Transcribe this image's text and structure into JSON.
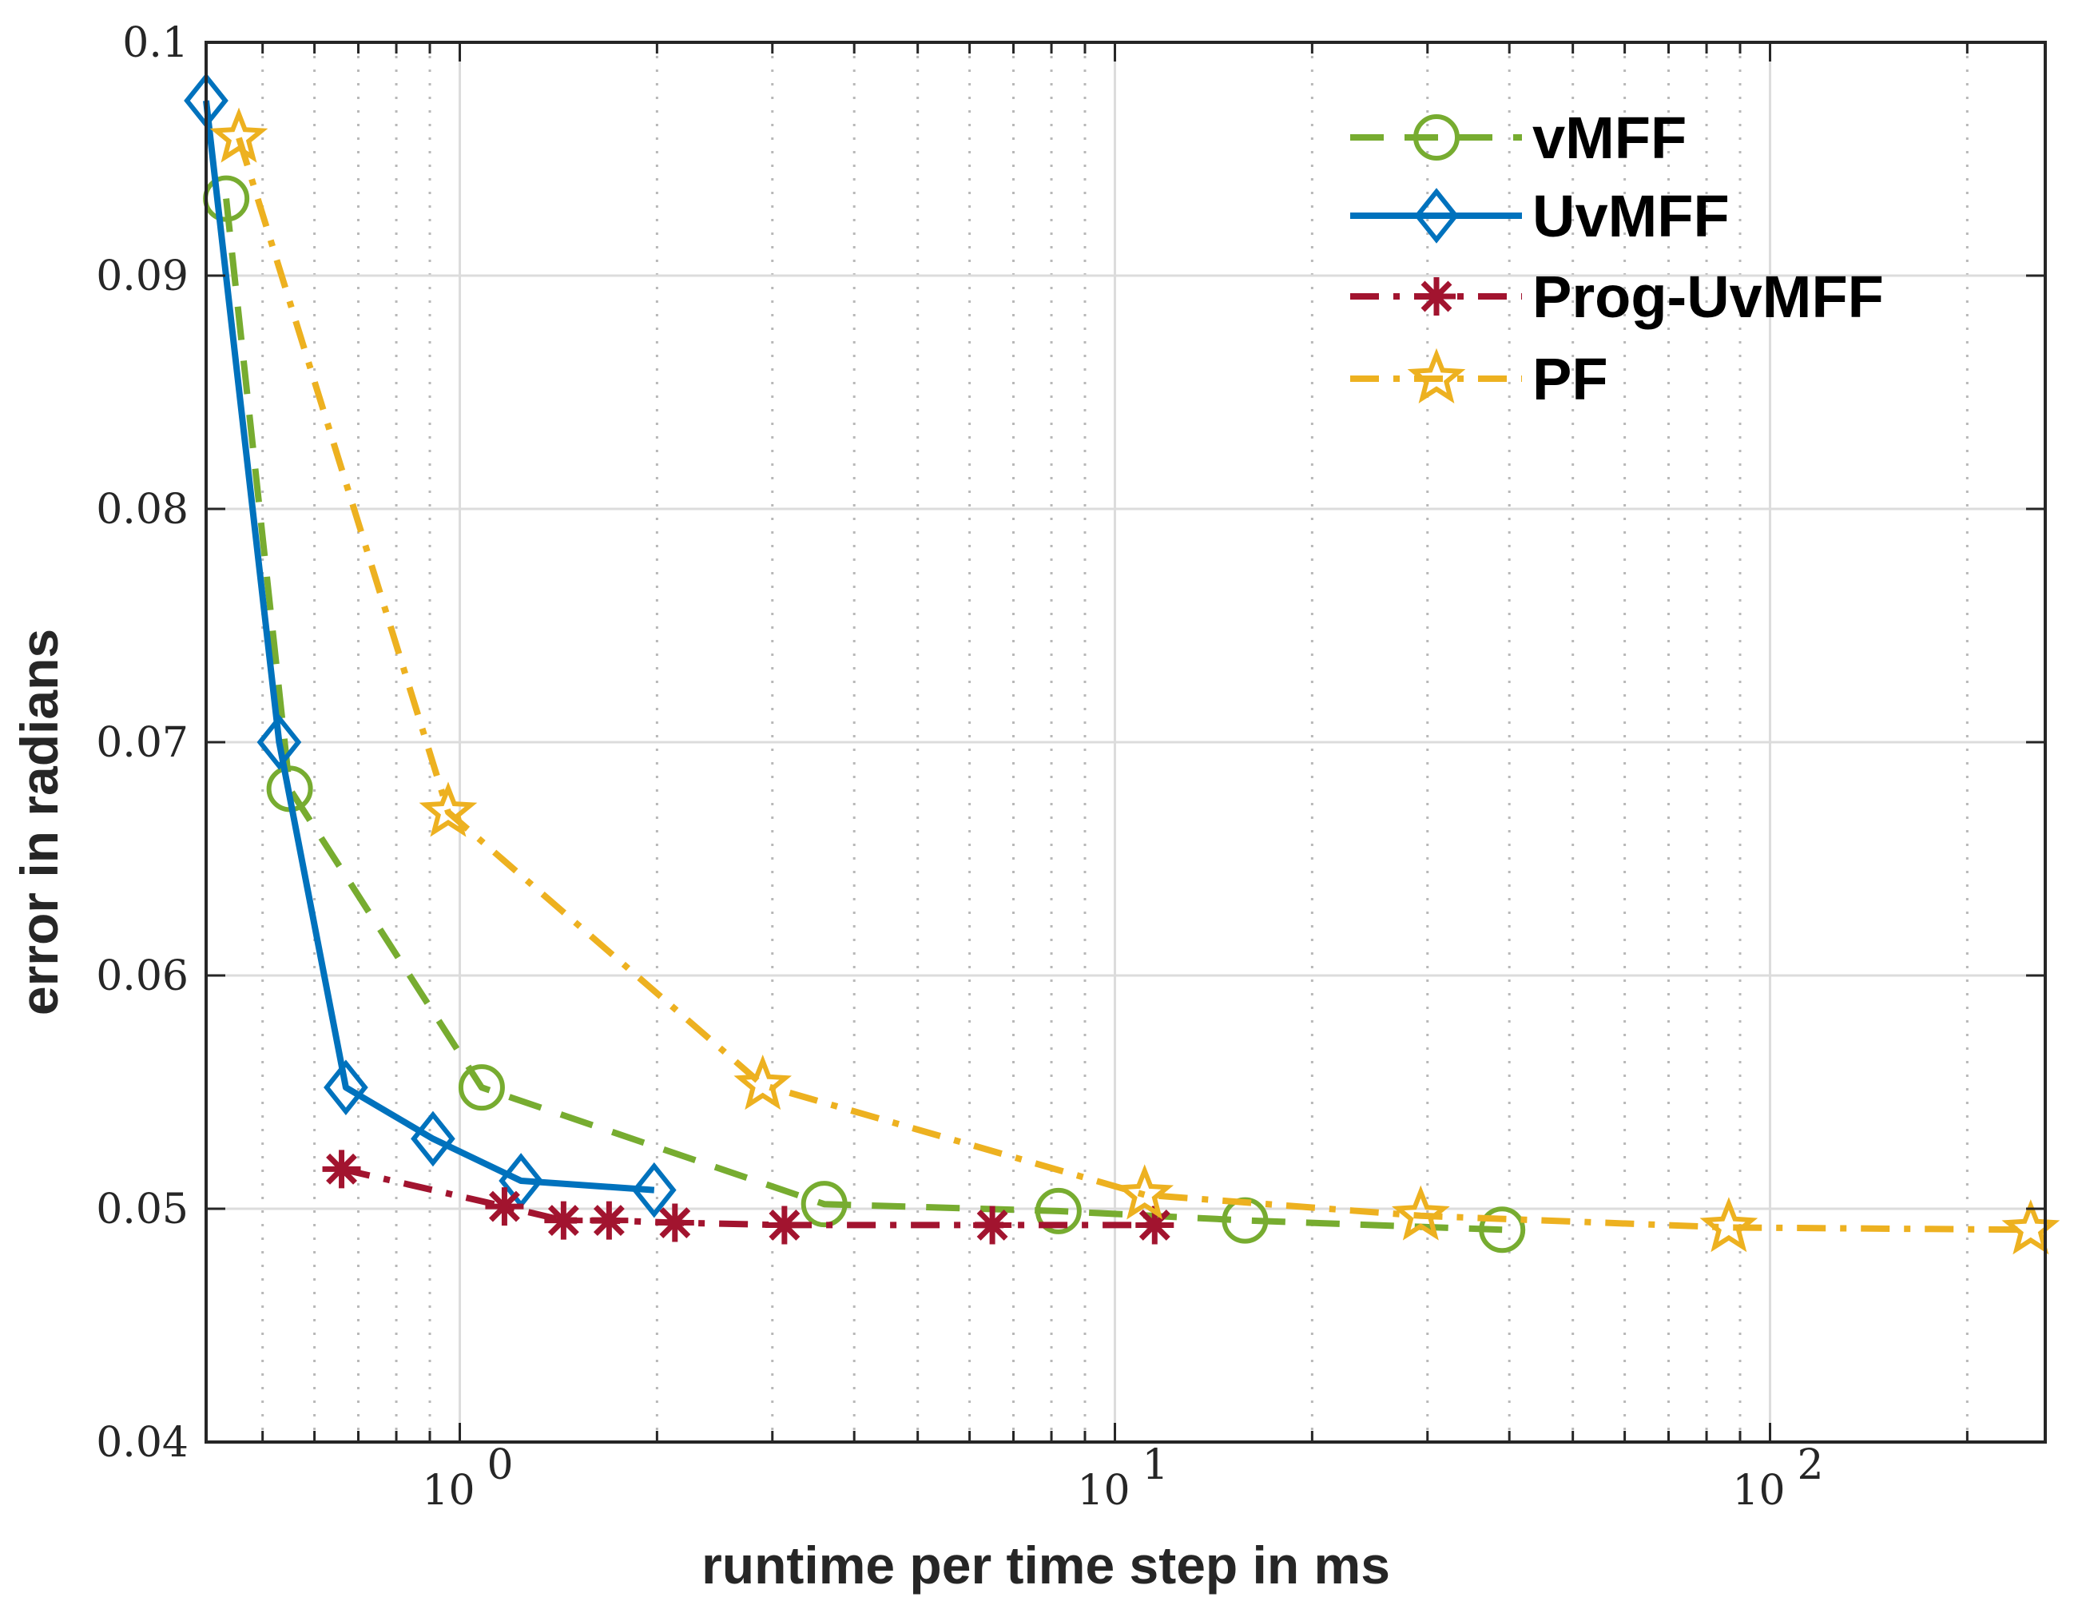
{
  "chart_data": {
    "type": "line",
    "title": "",
    "xlabel": "runtime per time step in ms",
    "ylabel": "error in radians",
    "xscale": "log",
    "xlim": [
      0.41,
      250
    ],
    "ylim": [
      0.04,
      0.1
    ],
    "grid": true,
    "legend_position": "top-right",
    "yticks": [
      "0.04",
      "0.05",
      "0.06",
      "0.07",
      "0.08",
      "0.09",
      "0.1"
    ],
    "xticks": [
      {
        "base": "10",
        "exp": "0",
        "value": 1
      },
      {
        "base": "10",
        "exp": "1",
        "value": 10
      },
      {
        "base": "10",
        "exp": "2",
        "value": 100
      }
    ],
    "series": [
      {
        "name": "vMFF",
        "color": "#77AC30",
        "linestyle": "dashed",
        "marker": "circle",
        "x": [
          0.44,
          0.55,
          1.08,
          3.6,
          8.2,
          15.8,
          39
        ],
        "y": [
          0.0933,
          0.068,
          0.0552,
          0.0502,
          0.0499,
          0.0495,
          0.0491
        ]
      },
      {
        "name": "UvMFF",
        "color": "#0072BD",
        "linestyle": "solid",
        "marker": "diamond",
        "x": [
          0.41,
          0.53,
          0.67,
          0.91,
          1.24,
          1.98
        ],
        "y": [
          0.0975,
          0.07,
          0.0552,
          0.053,
          0.0512,
          0.0508
        ]
      },
      {
        "name": "Prog-UvMFF",
        "color": "#A2142F",
        "linestyle": "dashdot",
        "marker": "asterisk",
        "x": [
          0.66,
          1.17,
          1.44,
          1.69,
          2.13,
          3.13,
          6.5,
          11.5
        ],
        "y": [
          0.0517,
          0.0501,
          0.0495,
          0.0495,
          0.0494,
          0.0493,
          0.0493,
          0.0493
        ]
      },
      {
        "name": "PF",
        "color": "#EDB120",
        "linestyle": "dashdot",
        "marker": "star",
        "x": [
          0.46,
          0.96,
          2.9,
          11.1,
          29.3,
          86.5,
          250
        ],
        "y": [
          0.0959,
          0.067,
          0.0553,
          0.0506,
          0.0497,
          0.0492,
          0.0491
        ]
      }
    ]
  }
}
